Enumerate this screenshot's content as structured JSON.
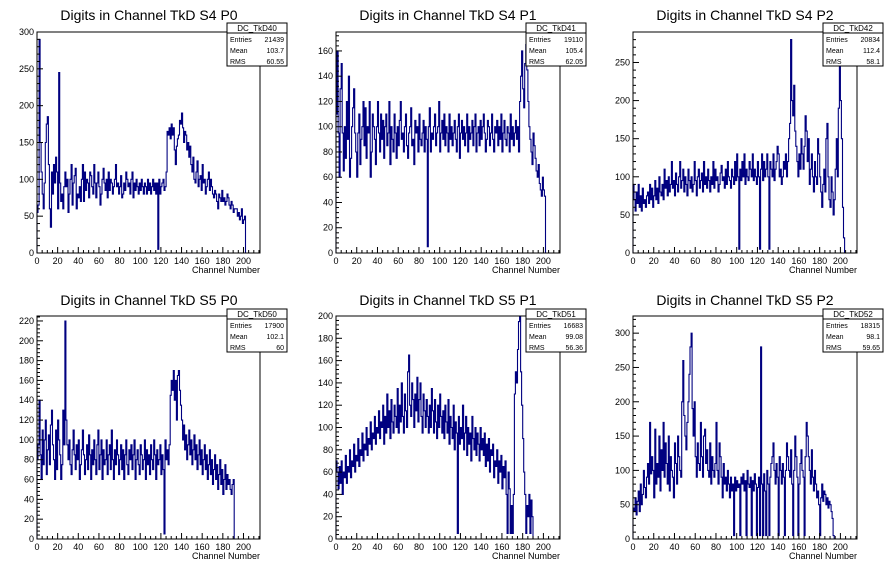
{
  "colors": {
    "histogram": "#000080",
    "axis": "#000000",
    "background": "#ffffff"
  },
  "chart_data": [
    {
      "type": "histogram",
      "title": "Digits in Channel TkD S4 P0",
      "xlabel": "Channel Number",
      "xlim": [
        0,
        216
      ],
      "ylim": [
        0,
        300
      ],
      "xticks": [
        0,
        20,
        40,
        60,
        80,
        100,
        120,
        140,
        160,
        180,
        200
      ],
      "yticks": [
        0,
        50,
        100,
        150,
        200,
        250,
        300
      ],
      "stats": {
        "name": "DC_TkD40",
        "entries": "21439",
        "mean": "103.7",
        "rms": "60.55"
      },
      "values": [
        55,
        65,
        290,
        150,
        110,
        80,
        60,
        95,
        150,
        175,
        185,
        120,
        60,
        35,
        110,
        80,
        120,
        95,
        130,
        110,
        60,
        245,
        95,
        70,
        80,
        60,
        90,
        110,
        90,
        100,
        55,
        80,
        100,
        120,
        65,
        95,
        105,
        115,
        60,
        80,
        75,
        90,
        70,
        100,
        120,
        70,
        110,
        85,
        100,
        95,
        75,
        110,
        105,
        90,
        80,
        120,
        95,
        75,
        95,
        110,
        90,
        65,
        80,
        100,
        115,
        95,
        85,
        100,
        75,
        110,
        85,
        100,
        95,
        80,
        90,
        100,
        120,
        90,
        95,
        80,
        90,
        105,
        75,
        80,
        95,
        85,
        110,
        100,
        90,
        95,
        80,
        100,
        110,
        75,
        95,
        85,
        100,
        90,
        80,
        95,
        85,
        100,
        90,
        80,
        95,
        90,
        80,
        100,
        85,
        95,
        80,
        90,
        100,
        85,
        95,
        80,
        95,
        5,
        100,
        80,
        90,
        95,
        100,
        85,
        90,
        110,
        165,
        160,
        170,
        155,
        175,
        160,
        170,
        140,
        120,
        145,
        155,
        160,
        180,
        175,
        190,
        170,
        150,
        165,
        160,
        140,
        150,
        130,
        145,
        120,
        110,
        130,
        100,
        95,
        110,
        125,
        90,
        100,
        105,
        85,
        120,
        95,
        100,
        80,
        90,
        100,
        110,
        85,
        100,
        90,
        80,
        75,
        85,
        80,
        70,
        60,
        80,
        75,
        70,
        85,
        70,
        75,
        65,
        70,
        80,
        75,
        65,
        60,
        70,
        65,
        55,
        60,
        60,
        60,
        50,
        55,
        45,
        50,
        60,
        40,
        45,
        50
      ],
      "data_start": 0
    },
    {
      "type": "histogram",
      "title": "Digits in Channel TkD S4 P1",
      "xlabel": "Channel Number",
      "xlim": [
        0,
        216
      ],
      "ylim": [
        0,
        175
      ],
      "xticks": [
        0,
        20,
        40,
        60,
        80,
        100,
        120,
        140,
        160,
        180,
        200
      ],
      "yticks": [
        0,
        20,
        40,
        60,
        80,
        100,
        120,
        140,
        160
      ],
      "stats": {
        "name": "DC_TkD41",
        "entries": "19110",
        "mean": "105.4",
        "rms": "62.05"
      },
      "values": [
        110,
        160,
        95,
        60,
        130,
        150,
        95,
        65,
        100,
        75,
        120,
        90,
        140,
        60,
        75,
        100,
        115,
        130,
        95,
        80,
        60,
        95,
        110,
        70,
        90,
        100,
        120,
        85,
        115,
        75,
        100,
        95,
        120,
        60,
        80,
        110,
        100,
        90,
        70,
        100,
        120,
        95,
        80,
        110,
        90,
        105,
        75,
        100,
        110,
        85,
        95,
        120,
        70,
        100,
        90,
        80,
        110,
        95,
        75,
        100,
        85,
        105,
        120,
        90,
        95,
        80,
        100,
        110,
        85,
        75,
        95,
        100,
        115,
        85,
        90,
        70,
        105,
        95,
        100,
        80,
        110,
        90,
        85,
        95,
        105,
        80,
        100,
        90,
        5,
        100,
        115,
        80,
        95,
        90,
        100,
        110,
        85,
        95,
        100,
        120,
        80,
        95,
        105,
        90,
        110,
        85,
        100,
        95,
        80,
        110,
        90,
        100,
        85,
        95,
        105,
        90,
        80,
        100,
        110,
        75,
        95,
        105,
        90,
        100,
        85,
        95,
        110,
        80,
        100,
        90,
        95,
        105,
        85,
        100,
        110,
        80,
        95,
        100,
        85,
        105,
        90,
        100,
        110,
        95,
        80,
        90,
        105,
        100,
        85,
        95,
        110,
        90,
        80,
        100,
        95,
        105,
        85,
        100,
        90,
        110,
        80,
        95,
        105,
        90,
        85,
        100,
        95,
        80,
        110,
        90,
        100,
        85,
        95,
        105,
        90,
        100,
        80,
        120,
        140,
        160,
        130,
        115,
        150,
        165,
        145,
        120,
        100,
        90,
        80,
        70,
        95,
        85,
        75,
        65,
        60,
        70,
        55,
        50,
        45,
        60,
        50,
        45
      ],
      "data_start": 0
    },
    {
      "type": "histogram",
      "title": "Digits in Channel TkD S4 P2",
      "xlabel": "Channel Number",
      "xlim": [
        0,
        216
      ],
      "ylim": [
        0,
        290
      ],
      "xticks": [
        0,
        20,
        40,
        60,
        80,
        100,
        120,
        140,
        160,
        180,
        200
      ],
      "yticks": [
        0,
        50,
        100,
        150,
        200,
        250
      ],
      "stats": {
        "name": "DC_TkD42",
        "entries": "20834",
        "mean": "112.4",
        "rms": "58.1"
      },
      "values": [
        90,
        70,
        55,
        80,
        65,
        90,
        60,
        75,
        55,
        85,
        65,
        70,
        60,
        75,
        80,
        65,
        90,
        70,
        85,
        60,
        75,
        95,
        70,
        85,
        65,
        100,
        80,
        75,
        90,
        70,
        110,
        85,
        95,
        75,
        100,
        80,
        90,
        120,
        85,
        95,
        75,
        105,
        90,
        80,
        100,
        120,
        85,
        95,
        110,
        80,
        100,
        90,
        75,
        110,
        95,
        85,
        100,
        80,
        90,
        120,
        95,
        75,
        100,
        110,
        85,
        95,
        105,
        80,
        120,
        90,
        100,
        85,
        110,
        95,
        80,
        100,
        90,
        120,
        85,
        110,
        95,
        100,
        80,
        90,
        105,
        115,
        95,
        100,
        85,
        110,
        90,
        120,
        100,
        95,
        85,
        110,
        100,
        90,
        120,
        95,
        130,
        100,
        5,
        110,
        95,
        120,
        100,
        130,
        90,
        110,
        100,
        95,
        120,
        110,
        100,
        130,
        95,
        110,
        100,
        90,
        120,
        100,
        5,
        110,
        130,
        95,
        120,
        100,
        110,
        130,
        100,
        5,
        120,
        110,
        100,
        130,
        95,
        110,
        120,
        140,
        130,
        100,
        110,
        90,
        100,
        120,
        110,
        130,
        100,
        120,
        150,
        170,
        280,
        200,
        180,
        220,
        160,
        140,
        120,
        100,
        130,
        110,
        150,
        130,
        110,
        140,
        180,
        160,
        120,
        150,
        90,
        110,
        130,
        100,
        80,
        120,
        100,
        90,
        150,
        130,
        100,
        80,
        60,
        90,
        110,
        80,
        150,
        170,
        100,
        70,
        60,
        100,
        80,
        50,
        70,
        110,
        150,
        100,
        190,
        250,
        200,
        150,
        60,
        20
      ],
      "data_start": 0
    },
    {
      "type": "histogram",
      "title": "Digits in Channel TkD S5 P0",
      "xlabel": "Channel Number",
      "xlim": [
        0,
        216
      ],
      "ylim": [
        0,
        225
      ],
      "xticks": [
        0,
        20,
        40,
        60,
        80,
        100,
        120,
        140,
        160,
        180,
        200
      ],
      "yticks": [
        0,
        20,
        40,
        60,
        80,
        100,
        120,
        140,
        160,
        180,
        200,
        220
      ],
      "stats": {
        "name": "DC_TkD50",
        "entries": "17900",
        "mean": "102.1",
        "rms": "60"
      },
      "values": [
        80,
        95,
        140,
        85,
        60,
        110,
        75,
        100,
        120,
        65,
        90,
        105,
        75,
        115,
        130,
        95,
        80,
        60,
        110,
        70,
        120,
        100,
        85,
        60,
        75,
        130,
        95,
        220,
        120,
        95,
        80,
        100,
        75,
        65,
        90,
        110,
        85,
        70,
        95,
        80,
        100,
        60,
        75,
        90,
        110,
        85,
        65,
        80,
        95,
        70,
        105,
        85,
        60,
        90,
        75,
        100,
        80,
        65,
        95,
        110,
        70,
        85,
        100,
        60,
        90,
        75,
        80,
        100,
        65,
        85,
        95,
        70,
        110,
        80,
        60,
        90,
        75,
        100,
        85,
        65,
        80,
        95,
        70,
        90,
        60,
        85,
        100,
        75,
        65,
        90,
        80,
        95,
        70,
        85,
        100,
        60,
        80,
        90,
        75,
        65,
        95,
        85,
        70,
        80,
        100,
        60,
        90,
        75,
        85,
        65,
        95,
        80,
        70,
        100,
        85,
        60,
        90,
        75,
        80,
        95,
        65,
        85,
        70,
        5,
        100,
        80,
        90,
        75,
        95,
        145,
        160,
        150,
        170,
        140,
        160,
        120,
        165,
        170,
        150,
        135,
        120,
        100,
        115,
        90,
        105,
        80,
        95,
        110,
        85,
        100,
        75,
        90,
        105,
        80,
        95,
        70,
        85,
        100,
        75,
        90,
        65,
        80,
        95,
        70,
        85,
        60,
        75,
        90,
        65,
        80,
        55,
        70,
        85,
        60,
        75,
        50,
        65,
        80,
        55,
        70,
        45,
        60,
        75,
        50,
        65,
        55,
        60,
        50,
        45,
        55,
        60
      ],
      "data_start": 0
    },
    {
      "type": "histogram",
      "title": "Digits in Channel TkD S5 P1",
      "xlabel": "Channel Number",
      "xlim": [
        0,
        216
      ],
      "ylim": [
        0,
        200
      ],
      "xticks": [
        0,
        20,
        40,
        60,
        80,
        100,
        120,
        140,
        160,
        180,
        200
      ],
      "yticks": [
        0,
        20,
        40,
        60,
        80,
        100,
        120,
        140,
        160,
        180,
        200
      ],
      "stats": {
        "name": "DC_TkD51",
        "entries": "16683",
        "mean": "99.08",
        "rms": "56.36"
      },
      "values": [
        70,
        60,
        45,
        65,
        50,
        70,
        40,
        60,
        55,
        75,
        50,
        65,
        60,
        80,
        55,
        70,
        65,
        85,
        60,
        75,
        70,
        90,
        65,
        80,
        75,
        95,
        70,
        85,
        80,
        100,
        75,
        90,
        85,
        105,
        80,
        95,
        90,
        110,
        85,
        100,
        95,
        115,
        90,
        105,
        100,
        120,
        85,
        110,
        95,
        130,
        100,
        115,
        90,
        125,
        105,
        95,
        120,
        110,
        100,
        135,
        95,
        120,
        105,
        140,
        110,
        95,
        130,
        115,
        100,
        150,
        165,
        120,
        110,
        140,
        125,
        100,
        130,
        115,
        145,
        105,
        125,
        140,
        110,
        95,
        130,
        115,
        100,
        125,
        110,
        95,
        120,
        100,
        135,
        115,
        95,
        125,
        105,
        90,
        120,
        100,
        130,
        110,
        95,
        115,
        90,
        120,
        105,
        95,
        125,
        85,
        110,
        100,
        90,
        120,
        80,
        105,
        95,
        5,
        110,
        85,
        100,
        90,
        120,
        80,
        95,
        110,
        75,
        100,
        85,
        95,
        70,
        110,
        90,
        80,
        100,
        75,
        95,
        85,
        70,
        100,
        80,
        90,
        75,
        95,
        65,
        85,
        70,
        90,
        60,
        80,
        75,
        85,
        55,
        70,
        65,
        80,
        50,
        70,
        60,
        75,
        45,
        65,
        55,
        70,
        40,
        5,
        60,
        45,
        5,
        30,
        5,
        40,
        130,
        150,
        140,
        170,
        195,
        200,
        150,
        120,
        90,
        60,
        40,
        5,
        30,
        20,
        40,
        5,
        35,
        20
      ],
      "data_start": 0
    },
    {
      "type": "histogram",
      "title": "Digits in Channel TkD S5 P2",
      "xlabel": "Channel Number",
      "xlim": [
        0,
        216
      ],
      "ylim": [
        0,
        325
      ],
      "xticks": [
        0,
        20,
        40,
        60,
        80,
        100,
        120,
        140,
        160,
        180,
        200
      ],
      "yticks": [
        0,
        50,
        100,
        150,
        200,
        250,
        300
      ],
      "stats": {
        "name": "DC_TkD52",
        "entries": "18315",
        "mean": "98.1",
        "rms": "59.65"
      },
      "values": [
        45,
        40,
        60,
        35,
        55,
        70,
        40,
        80,
        50,
        65,
        100,
        75,
        60,
        90,
        110,
        80,
        170,
        95,
        120,
        100,
        60,
        160,
        80,
        110,
        90,
        150,
        70,
        130,
        100,
        170,
        90,
        140,
        110,
        80,
        150,
        70,
        120,
        100,
        90,
        60,
        140,
        110,
        80,
        150,
        120,
        100,
        90,
        200,
        260,
        180,
        150,
        130,
        170,
        200,
        240,
        280,
        300,
        190,
        150,
        200,
        120,
        90,
        140,
        110,
        100,
        170,
        120,
        90,
        150,
        160,
        110,
        130,
        100,
        90,
        140,
        80,
        120,
        100,
        90,
        110,
        170,
        100,
        80,
        140,
        120,
        90,
        60,
        110,
        80,
        90,
        70,
        100,
        80,
        60,
        90,
        70,
        80,
        5,
        90,
        70,
        85,
        75,
        80,
        5,
        90,
        80,
        95,
        70,
        85,
        5,
        100,
        80,
        75,
        90,
        5,
        85,
        70,
        95,
        80,
        5,
        75,
        90,
        5,
        280,
        80,
        5,
        95,
        70,
        5,
        100,
        80,
        5,
        90,
        110,
        120,
        140,
        100,
        80,
        110,
        90,
        5,
        120,
        100,
        80,
        110,
        90,
        5,
        100,
        140,
        120,
        100,
        90,
        130,
        80,
        5,
        100,
        150,
        120,
        90,
        5,
        80,
        110,
        130,
        100,
        90,
        5,
        120,
        170,
        150,
        120,
        100,
        80,
        130,
        90,
        70,
        100,
        80,
        60,
        70,
        50,
        5,
        60,
        80,
        55,
        70,
        65,
        50,
        60,
        45,
        55,
        50,
        40,
        30,
        5
      ],
      "data_start": 0
    }
  ]
}
